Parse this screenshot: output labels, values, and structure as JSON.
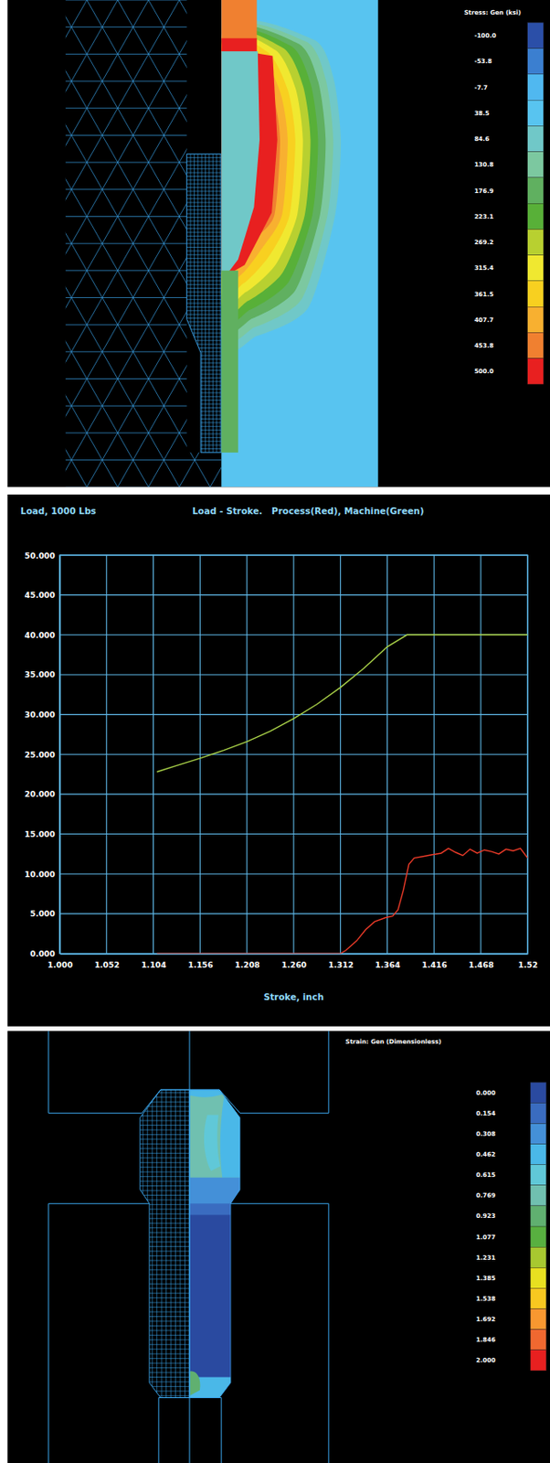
{
  "chart_data": [
    {
      "type": "contour",
      "title": "Stress: Gen (ksi)",
      "colorbar_range": [
        -100,
        500
      ],
      "colorbar_ticks": [
        {
          "value": -100,
          "label": "-100.0"
        },
        -53.8,
        -7.7,
        38.5,
        84.6,
        130.8,
        176.9,
        223.1,
        269.2,
        315.4,
        361.5,
        407.7,
        453.8,
        {
          "value": 500,
          "label": "500.0"
        }
      ],
      "colors": [
        "#2b4fa8",
        "#3b7fd0",
        "#50b8f0",
        "#58c4f0",
        "#70c8c8",
        "#7cc8a0",
        "#60b060",
        "#58b038",
        "#b8d030",
        "#f0e830",
        "#f8d020",
        "#f8b030",
        "#f08030",
        "#e82020"
      ]
    },
    {
      "type": "line",
      "title": "Load - Stroke.   Process(Red), Machine(Green)",
      "y_label": "Load, 1000 Lbs",
      "x_label": "Stroke, inch",
      "xlim": [
        1,
        1.52
      ],
      "ylim": [
        0,
        50
      ],
      "xticks": [
        {
          "value": 1,
          "label": "1.000"
        },
        1.052,
        1.104,
        1.156,
        1.208,
        {
          "value": 1.26,
          "label": "1.260"
        },
        1.312,
        1.364,
        1.416,
        1.468,
        1.52
      ],
      "yticks": [
        {
          "value": 0,
          "label": "0.000"
        },
        {
          "value": 5,
          "label": "5.000"
        },
        {
          "value": 10,
          "label": "10.000"
        },
        {
          "value": 15,
          "label": "15.000"
        },
        {
          "value": 20,
          "label": "20.000"
        },
        {
          "value": 25,
          "label": "25.000"
        },
        {
          "value": 30,
          "label": "30.000"
        },
        {
          "value": 35,
          "label": "35.000"
        },
        {
          "value": 40,
          "label": "40.000"
        },
        {
          "value": 45,
          "label": "45.000"
        },
        {
          "value": 50,
          "label": "50.000"
        }
      ],
      "grid": true,
      "series": [
        {
          "color": "#e83a28",
          "x": [
            1.108,
            1.2,
            1.312,
            1.318,
            1.33,
            1.34,
            1.35,
            1.362,
            1.37,
            1.376,
            1.382,
            1.388,
            1.394,
            1.404,
            1.414,
            1.424,
            1.432,
            1.44,
            1.448,
            1.456,
            1.464,
            1.472,
            1.48,
            1.488,
            1.496,
            1.504,
            1.512,
            1.52
          ],
          "values": [
            0,
            0,
            0,
            0.4,
            1.6,
            3,
            4,
            4.5,
            4.7,
            5.5,
            8,
            11.2,
            12,
            12.2,
            12.4,
            12.6,
            13.2,
            12.7,
            12.3,
            13.1,
            12.6,
            13,
            12.8,
            12.5,
            13.1,
            12.9,
            13.2,
            12
          ]
        },
        {
          "color": "#a8d048",
          "x": [
            1.108,
            1.13,
            1.156,
            1.182,
            1.208,
            1.234,
            1.26,
            1.286,
            1.312,
            1.338,
            1.364,
            1.386,
            1.416,
            1.468,
            1.52
          ],
          "values": [
            22.8,
            23.6,
            24.5,
            25.5,
            26.6,
            27.9,
            29.5,
            31.3,
            33.4,
            35.8,
            38.5,
            40,
            40,
            40,
            40
          ]
        }
      ]
    },
    {
      "type": "contour",
      "title": "Strain: Gen (Dimensionless)",
      "colorbar_range": [
        0,
        2
      ],
      "colorbar_ticks": [
        {
          "value": 0,
          "label": "0.000"
        },
        0.154,
        0.308,
        0.462,
        0.615,
        0.769,
        0.923,
        1.077,
        1.231,
        1.385,
        1.538,
        1.692,
        1.846,
        {
          "value": 2,
          "label": "2.000"
        }
      ],
      "colors": [
        "#2a4aa0",
        "#3a6cc0",
        "#4490d8",
        "#4ab8e8",
        "#60c8d8",
        "#70c0b0",
        "#60b070",
        "#58b040",
        "#a8c830",
        "#e8e020",
        "#f8c820",
        "#f89830",
        "#f06830",
        "#e82020"
      ]
    }
  ]
}
